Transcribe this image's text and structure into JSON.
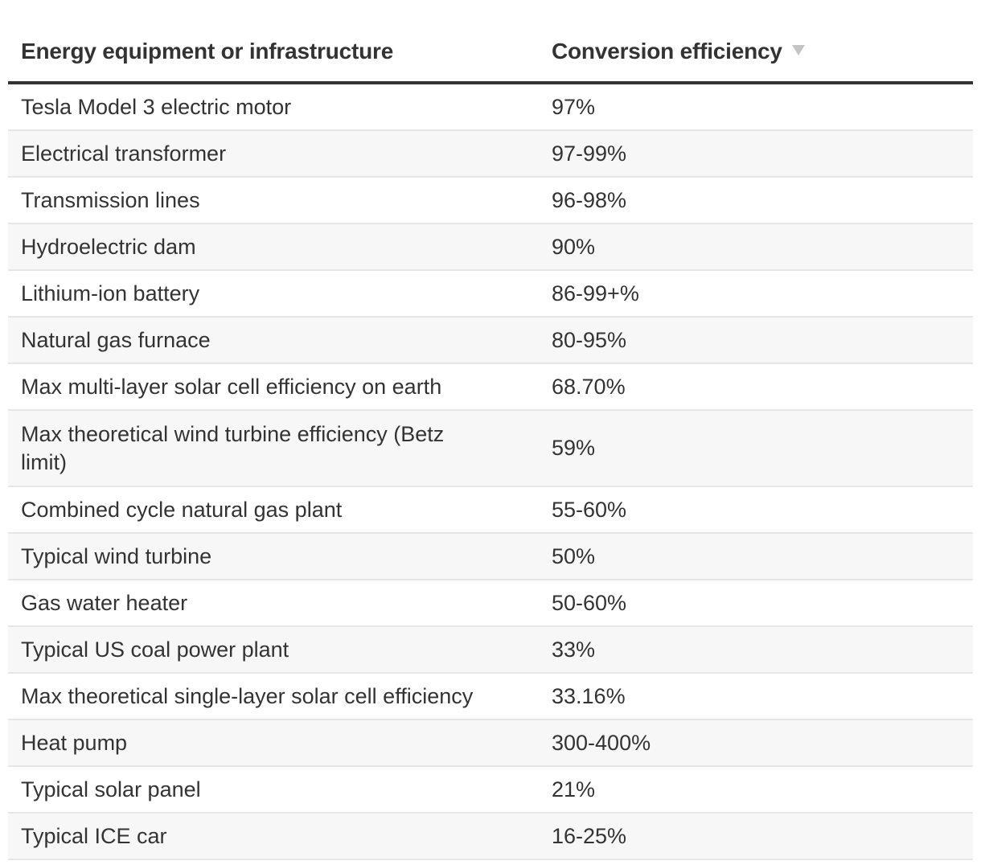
{
  "table": {
    "headers": {
      "equipment": "Energy equipment or infrastructure",
      "efficiency": "Conversion efficiency"
    },
    "sort_indicator": "sort-descending-icon",
    "rows": [
      {
        "equipment": "Tesla Model 3 electric motor",
        "efficiency": "97%"
      },
      {
        "equipment": "Electrical transformer",
        "efficiency": "97-99%"
      },
      {
        "equipment": "Transmission lines",
        "efficiency": "96-98%"
      },
      {
        "equipment": "Hydroelectric dam",
        "efficiency": "90%"
      },
      {
        "equipment": "Lithium-ion battery",
        "efficiency": "86-99+%"
      },
      {
        "equipment": "Natural gas furnace",
        "efficiency": "80-95%"
      },
      {
        "equipment": "Max multi-layer solar cell efficiency on earth",
        "efficiency": "68.70%"
      },
      {
        "equipment": "Max theoretical wind turbine efficiency (Betz limit)",
        "efficiency": "59%"
      },
      {
        "equipment": "Combined cycle natural gas plant",
        "efficiency": "55-60%"
      },
      {
        "equipment": "Typical wind turbine",
        "efficiency": "50%"
      },
      {
        "equipment": "Gas water heater",
        "efficiency": "50-60%"
      },
      {
        "equipment": "Typical US coal power plant",
        "efficiency": "33%"
      },
      {
        "equipment": "Max theoretical single-layer solar cell efficiency",
        "efficiency": "33.16%"
      },
      {
        "equipment": "Heat pump",
        "efficiency": "300-400%"
      },
      {
        "equipment": "Typical solar panel",
        "efficiency": "21%"
      },
      {
        "equipment": "Typical ICE car",
        "efficiency": "16-25%"
      }
    ]
  },
  "colors": {
    "header_rule": "#333333",
    "row_alt_bg": "#f7f7f7",
    "row_divider": "#e6e6e6",
    "sort_icon": "#c4c4c4"
  }
}
